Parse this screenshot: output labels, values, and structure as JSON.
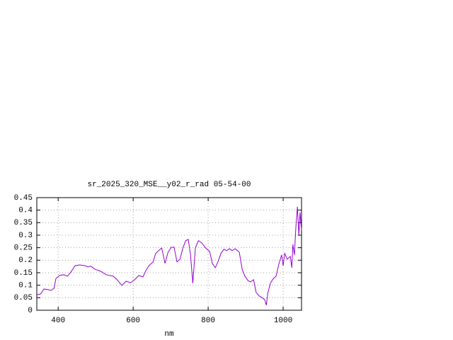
{
  "chart_data": {
    "type": "line",
    "title": "sr_2025_320_MSE__y02_r_rad 05-54-00",
    "x_label": "nm",
    "x": [
      343,
      353,
      362,
      374,
      381,
      389,
      394,
      404,
      415,
      425,
      434,
      445,
      457,
      472,
      479,
      487,
      498,
      513,
      528,
      547,
      557,
      570,
      581,
      593,
      604,
      615,
      626,
      634,
      642,
      653,
      660,
      668,
      676,
      685,
      693,
      702,
      709,
      717,
      725,
      732,
      740,
      747,
      753,
      759,
      766,
      774,
      783,
      793,
      804,
      811,
      819,
      826,
      834,
      842,
      849,
      857,
      864,
      872,
      883,
      891,
      898,
      906,
      913,
      921,
      928,
      936,
      943,
      951,
      955,
      959,
      966,
      974,
      981,
      989,
      996,
      1000,
      1004,
      1011,
      1019,
      1023,
      1026,
      1030,
      1034,
      1038,
      1042,
      1045,
      1049
    ],
    "series": [
      {
        "name": "sr_2025_320_MSE__y02_r_rad",
        "color": "#9400d3",
        "values": [
          0.062,
          0.065,
          0.085,
          0.082,
          0.079,
          0.088,
          0.127,
          0.139,
          0.142,
          0.136,
          0.153,
          0.178,
          0.181,
          0.178,
          0.173,
          0.176,
          0.164,
          0.156,
          0.142,
          0.136,
          0.122,
          0.099,
          0.116,
          0.11,
          0.122,
          0.139,
          0.133,
          0.159,
          0.178,
          0.193,
          0.227,
          0.238,
          0.249,
          0.187,
          0.232,
          0.252,
          0.252,
          0.193,
          0.204,
          0.246,
          0.278,
          0.283,
          0.221,
          0.108,
          0.249,
          0.278,
          0.269,
          0.249,
          0.235,
          0.187,
          0.17,
          0.193,
          0.227,
          0.244,
          0.238,
          0.246,
          0.238,
          0.246,
          0.232,
          0.161,
          0.136,
          0.119,
          0.113,
          0.122,
          0.071,
          0.057,
          0.051,
          0.042,
          0.02,
          0.068,
          0.108,
          0.127,
          0.136,
          0.187,
          0.221,
          0.178,
          0.227,
          0.204,
          0.215,
          0.17,
          0.263,
          0.221,
          0.334,
          0.414,
          0.3,
          0.391,
          0.32
        ]
      }
    ],
    "xlim": [
      343,
      1049
    ],
    "xticks": [
      400,
      600,
      800,
      1000
    ],
    "ylim": [
      0,
      0.45
    ],
    "yticks": [
      0,
      0.05,
      0.1,
      0.15,
      0.2,
      0.25,
      0.3,
      0.35,
      0.4,
      0.45
    ],
    "grid": true
  }
}
